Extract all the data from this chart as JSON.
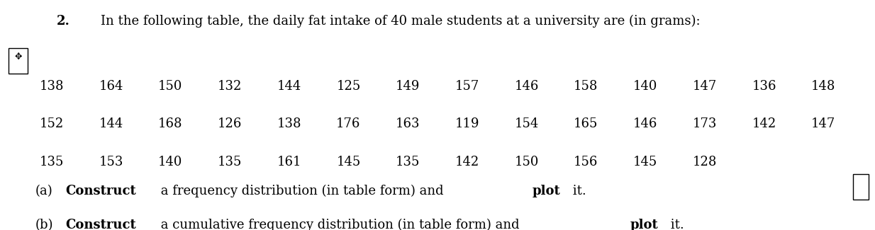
{
  "title_number": "2.",
  "title_text": "In the following table, the daily fat intake of 40 male students at a university are (in grams):",
  "row1": [
    138,
    164,
    150,
    132,
    144,
    125,
    149,
    157,
    146,
    158,
    140,
    147,
    136,
    148
  ],
  "row2": [
    152,
    144,
    168,
    126,
    138,
    176,
    163,
    119,
    154,
    165,
    146,
    173,
    142,
    147
  ],
  "row3": [
    135,
    153,
    140,
    135,
    161,
    145,
    135,
    142,
    150,
    156,
    145,
    128
  ],
  "part_a_bold": "Construct",
  "part_a_normal": " a frequency distribution (in table form) and ",
  "part_a_bold2": "plot",
  "part_a_end": " it.",
  "part_b_bold": "Construct",
  "part_b_normal": " a cumulative frequency distribution (in table form) and ",
  "part_b_bold2": "plot",
  "part_b_end": " it.",
  "bg_color": "#ffffff",
  "text_color": "#000000",
  "font_size_title": 13,
  "font_size_data": 13,
  "font_size_parts": 13
}
